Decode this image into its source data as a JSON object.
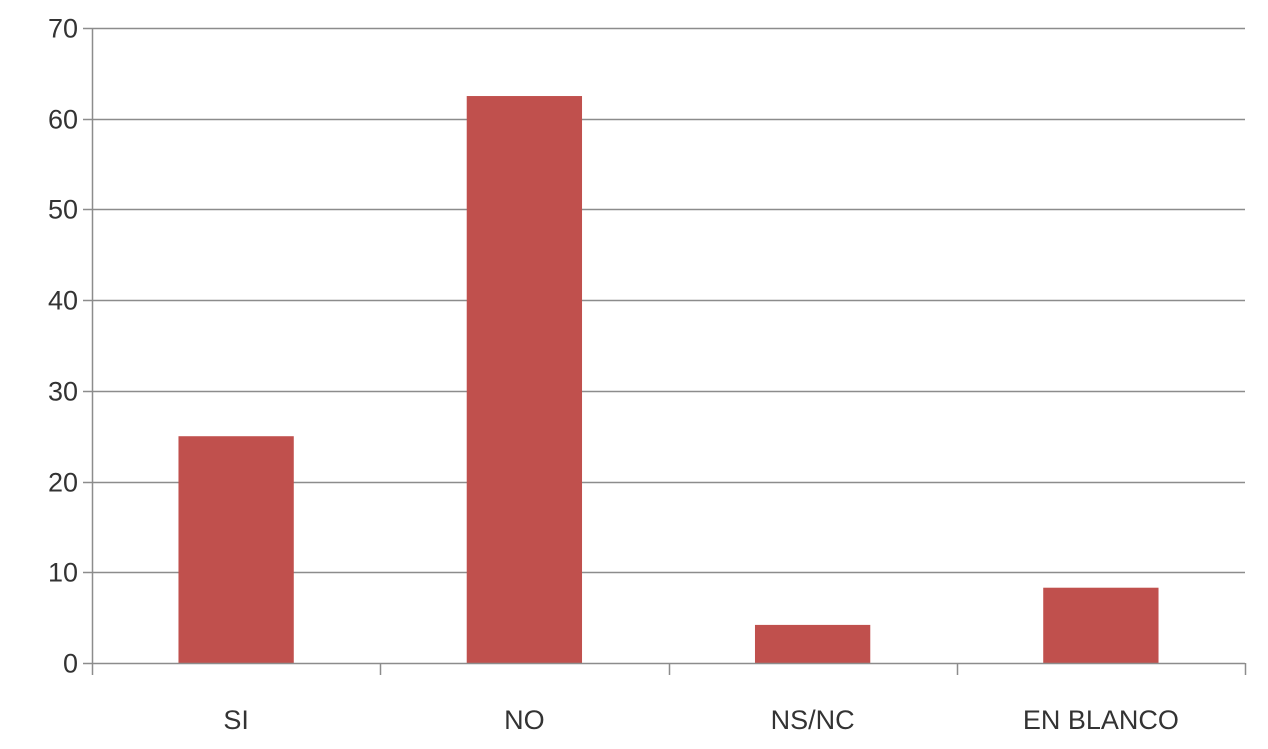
{
  "chart_data": {
    "type": "bar",
    "categories": [
      "SI",
      "NO",
      "NS/NC",
      "EN BLANCO"
    ],
    "values": [
      25,
      62.5,
      4.2,
      8.3
    ],
    "ylim": [
      0,
      70
    ],
    "yticks": [
      0,
      10,
      20,
      30,
      40,
      50,
      60,
      70
    ],
    "grid": true,
    "legend": "none",
    "title": "",
    "xlabel": "",
    "ylabel": "",
    "colors": {
      "bar": "#c0504d",
      "grid": "#8c8c8c",
      "axis": "#8c8c8c",
      "text": "#333333"
    }
  }
}
